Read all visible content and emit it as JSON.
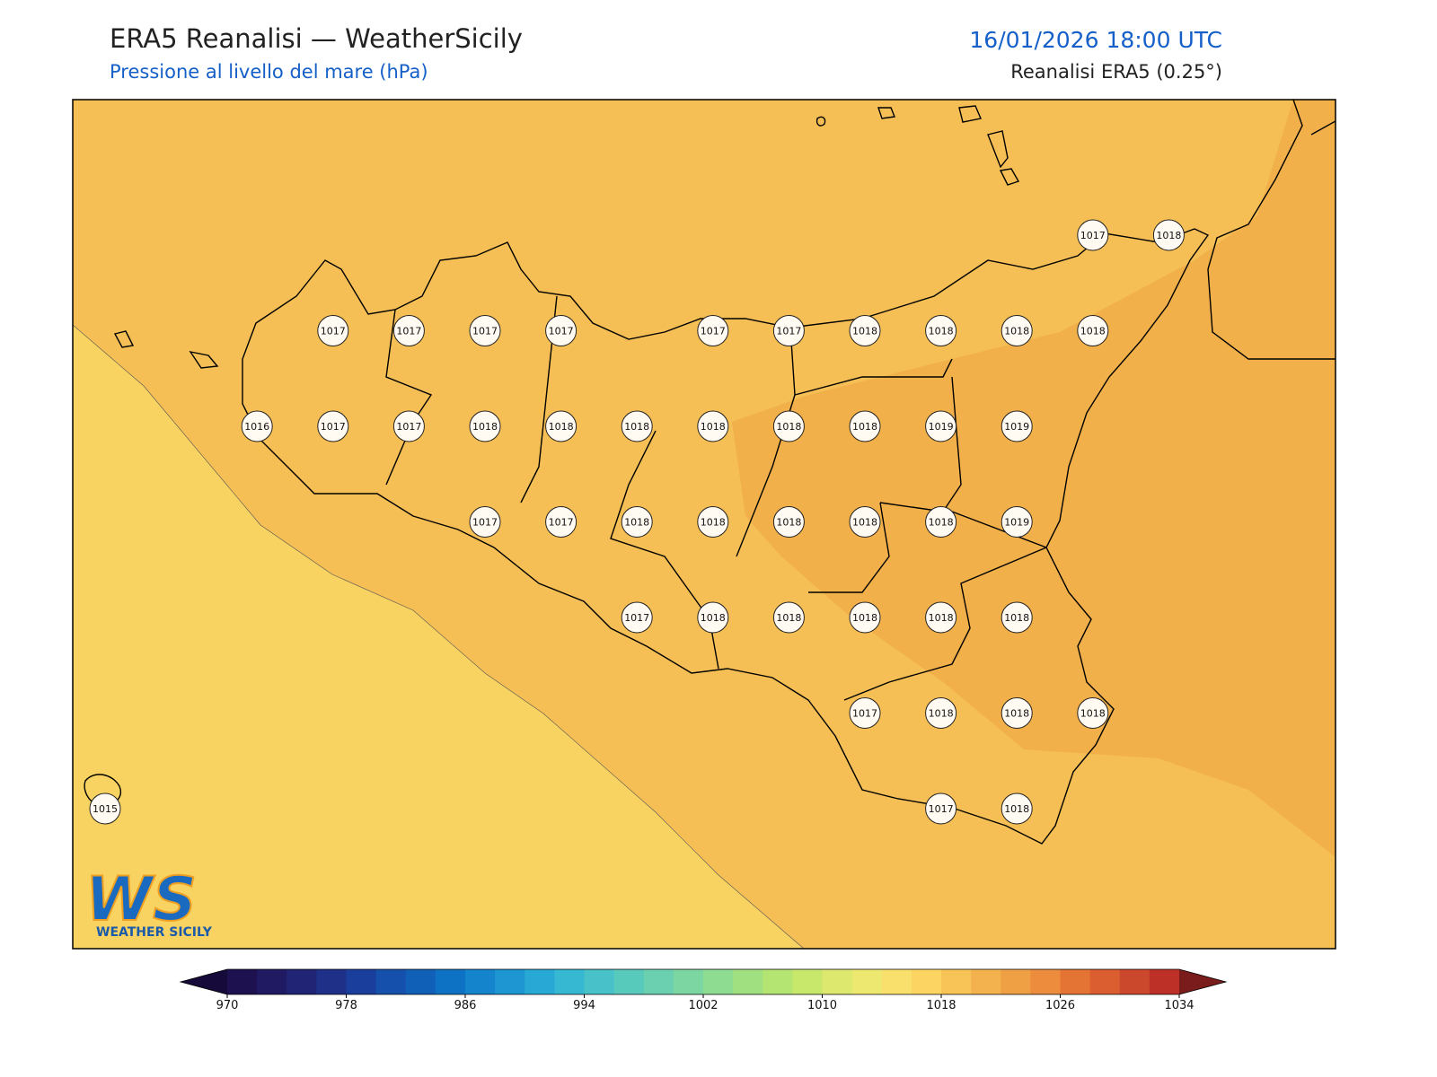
{
  "header": {
    "title": "ERA5 Reanalisi — WeatherSicily",
    "subtitle": "Pressione al livello del mare (hPa)",
    "datetime": "16/01/2026 18:00 UTC",
    "source": "Reanalisi ERA5 (0.25°)"
  },
  "stations": {
    "rows": [
      [
        null,
        null,
        null,
        null,
        null,
        null,
        null,
        null,
        null,
        null,
        null,
        null,
        null,
        "1017",
        "1018"
      ],
      [
        null,
        null,
        null,
        "1017",
        "1017",
        "1017",
        "1017",
        null,
        "1017",
        "1017",
        "1018",
        "1018",
        "1018",
        "1018",
        null
      ],
      [
        null,
        null,
        "1016",
        "1017",
        "1017",
        "1018",
        "1018",
        "1018",
        "1018",
        "1018",
        "1018",
        "1019",
        "1019",
        null,
        null
      ],
      [
        null,
        null,
        null,
        null,
        null,
        "1017",
        "1017",
        "1018",
        "1018",
        "1018",
        "1018",
        "1018",
        "1019",
        null,
        null
      ],
      [
        null,
        null,
        null,
        null,
        null,
        null,
        null,
        "1017",
        "1018",
        "1018",
        "1018",
        "1018",
        "1018",
        null,
        null
      ],
      [
        null,
        null,
        null,
        null,
        null,
        null,
        null,
        null,
        null,
        null,
        "1017",
        "1018",
        "1018",
        "1018",
        null
      ],
      [
        "1015",
        null,
        null,
        null,
        null,
        null,
        null,
        null,
        null,
        null,
        null,
        "1017",
        "1018",
        null,
        null
      ]
    ]
  },
  "colorbar": {
    "ticks": [
      970,
      978,
      986,
      994,
      1002,
      1010,
      1018,
      1026,
      1034
    ],
    "colors": [
      "#1d1150",
      "#1f1a62",
      "#212474",
      "#1e3088",
      "#1a3e9c",
      "#1550ac",
      "#1160b8",
      "#0e72c4",
      "#1484cc",
      "#1d96d2",
      "#28a8d4",
      "#36b8d2",
      "#48c2c8",
      "#58cabc",
      "#6ad0b0",
      "#7cd6a2",
      "#8edc92",
      "#a0e080",
      "#b4e472",
      "#c8e86c",
      "#dce86e",
      "#ece870",
      "#f9e06c",
      "#fcd462",
      "#f8c458",
      "#f4b24e",
      "#f0a044",
      "#ec8c3c",
      "#e47434",
      "#da5e30",
      "#cc482c",
      "#bc3028"
    ],
    "under": "#160a3a",
    "over": "#7a1c1c"
  },
  "logo": {
    "mark": "WS",
    "text": "WEATHER SICILY"
  }
}
